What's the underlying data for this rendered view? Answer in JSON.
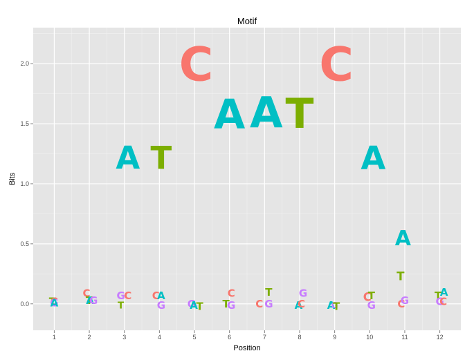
{
  "chart_data": {
    "type": "scatter",
    "title": "Motif",
    "xlabel": "Position",
    "ylabel": "Bits",
    "xlim": [
      0.4,
      12.6
    ],
    "ylim": [
      -0.22,
      2.3
    ],
    "x_ticks": [
      "1",
      "2",
      "3",
      "4",
      "5",
      "6",
      "7",
      "8",
      "9",
      "10",
      "11",
      "12"
    ],
    "y_ticks": [
      "0.0",
      "0.5",
      "1.0",
      "1.5",
      "2.0"
    ],
    "grid": true,
    "colors": {
      "A": "#00bfc4",
      "C": "#f8766d",
      "G": "#c77cff",
      "T": "#7cae00"
    },
    "points": [
      {
        "x": 0.95,
        "y": 0.02,
        "letter": "T",
        "size": 1
      },
      {
        "x": 1.0,
        "y": 0.02,
        "letter": "C",
        "size": 1
      },
      {
        "x": 1.0,
        "y": 0.01,
        "letter": "G",
        "size": 1
      },
      {
        "x": 1.0,
        "y": 0.01,
        "letter": "A",
        "size": 1
      },
      {
        "x": 1.92,
        "y": 0.09,
        "letter": "C",
        "size": 1
      },
      {
        "x": 2.0,
        "y": 0.03,
        "letter": "T",
        "size": 1
      },
      {
        "x": 2.02,
        "y": 0.03,
        "letter": "A",
        "size": 1
      },
      {
        "x": 2.12,
        "y": 0.03,
        "letter": "G",
        "size": 1
      },
      {
        "x": 2.9,
        "y": 0.07,
        "letter": "G",
        "size": 1
      },
      {
        "x": 3.1,
        "y": 0.07,
        "letter": "C",
        "size": 1
      },
      {
        "x": 2.9,
        "y": -0.01,
        "letter": "T",
        "size": 0.9
      },
      {
        "x": 3.1,
        "y": 1.22,
        "letter": "A",
        "size": 3
      },
      {
        "x": 3.9,
        "y": 0.07,
        "letter": "C",
        "size": 1
      },
      {
        "x": 4.05,
        "y": 0.07,
        "letter": "A",
        "size": 1
      },
      {
        "x": 4.05,
        "y": -0.01,
        "letter": "G",
        "size": 1
      },
      {
        "x": 4.05,
        "y": 1.22,
        "letter": "T",
        "size": 3
      },
      {
        "x": 4.92,
        "y": 0.0,
        "letter": "G",
        "size": 1
      },
      {
        "x": 4.98,
        "y": -0.01,
        "letter": "A",
        "size": 1
      },
      {
        "x": 5.15,
        "y": -0.02,
        "letter": "T",
        "size": 1
      },
      {
        "x": 5.05,
        "y": 2.0,
        "letter": "C",
        "size": 4.5
      },
      {
        "x": 5.9,
        "y": 0.0,
        "letter": "T",
        "size": 1
      },
      {
        "x": 6.05,
        "y": 0.09,
        "letter": "C",
        "size": 1
      },
      {
        "x": 6.05,
        "y": -0.01,
        "letter": "G",
        "size": 1
      },
      {
        "x": 6.0,
        "y": 1.58,
        "letter": "A",
        "size": 3.9
      },
      {
        "x": 6.85,
        "y": 0.0,
        "letter": "C",
        "size": 1
      },
      {
        "x": 7.12,
        "y": 0.1,
        "letter": "T",
        "size": 1
      },
      {
        "x": 7.12,
        "y": 0.0,
        "letter": "G",
        "size": 1
      },
      {
        "x": 7.05,
        "y": 1.6,
        "letter": "A",
        "size": 4.1
      },
      {
        "x": 7.97,
        "y": -0.01,
        "letter": "A",
        "size": 1
      },
      {
        "x": 8.05,
        "y": 0.0,
        "letter": "C",
        "size": 1
      },
      {
        "x": 8.1,
        "y": 0.09,
        "letter": "G",
        "size": 1
      },
      {
        "x": 8.0,
        "y": 1.59,
        "letter": "T",
        "size": 4
      },
      {
        "x": 8.9,
        "y": -0.01,
        "letter": "A",
        "size": 1
      },
      {
        "x": 9.0,
        "y": -0.01,
        "letter": "G",
        "size": 0.8
      },
      {
        "x": 9.05,
        "y": -0.02,
        "letter": "T",
        "size": 1
      },
      {
        "x": 9.05,
        "y": 2.0,
        "letter": "C",
        "size": 4.5
      },
      {
        "x": 9.93,
        "y": 0.06,
        "letter": "C",
        "size": 1.1
      },
      {
        "x": 10.05,
        "y": 0.07,
        "letter": "T",
        "size": 1
      },
      {
        "x": 10.05,
        "y": -0.01,
        "letter": "G",
        "size": 1
      },
      {
        "x": 10.1,
        "y": 1.22,
        "letter": "A",
        "size": 3.1
      },
      {
        "x": 10.9,
        "y": 0.0,
        "letter": "C",
        "size": 1
      },
      {
        "x": 11.0,
        "y": 0.03,
        "letter": "G",
        "size": 1
      },
      {
        "x": 10.88,
        "y": 0.23,
        "letter": "T",
        "size": 1.1
      },
      {
        "x": 10.95,
        "y": 0.55,
        "letter": "A",
        "size": 2
      },
      {
        "x": 11.95,
        "y": 0.07,
        "letter": "T",
        "size": 1
      },
      {
        "x": 12.0,
        "y": 0.02,
        "letter": "G",
        "size": 1
      },
      {
        "x": 12.1,
        "y": 0.02,
        "letter": "C",
        "size": 1
      },
      {
        "x": 12.12,
        "y": 0.1,
        "letter": "A",
        "size": 1
      }
    ]
  }
}
